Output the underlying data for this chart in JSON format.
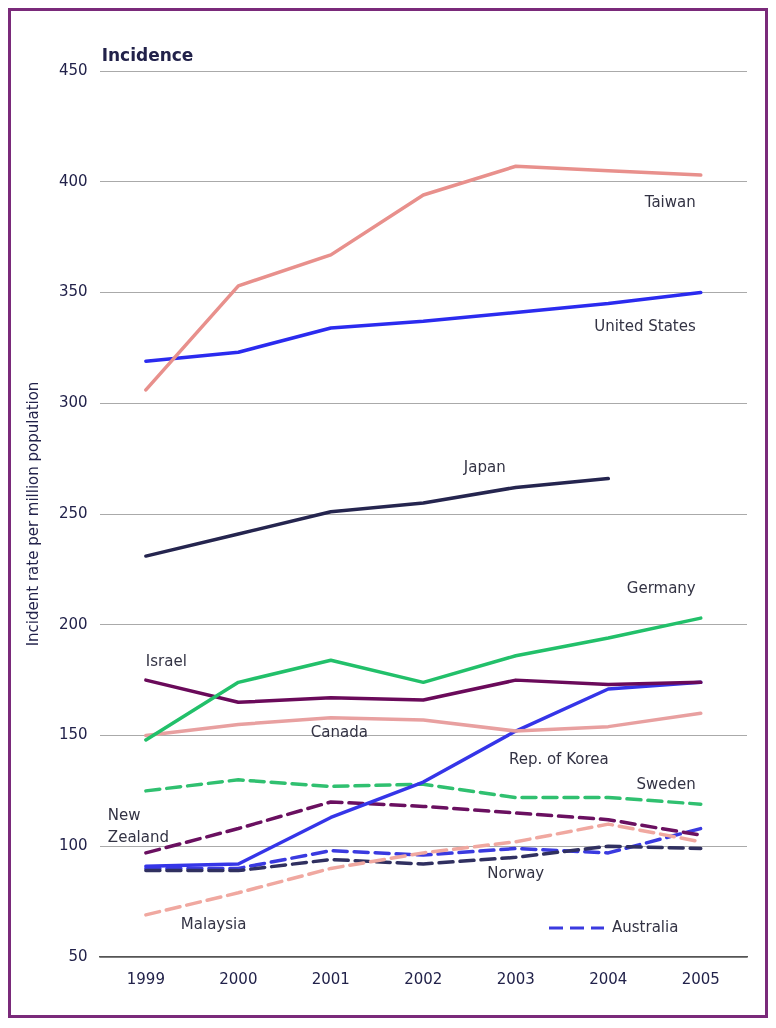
{
  "chart_data": {
    "type": "line",
    "title": "Incidence",
    "ylabel": "Incident rate per million population",
    "categories": [
      "1999",
      "2000",
      "2001",
      "2002",
      "2003",
      "2004",
      "2005"
    ],
    "ylim": [
      50,
      450
    ],
    "yticks": [
      50,
      100,
      150,
      200,
      250,
      300,
      350,
      400,
      450
    ],
    "grid": "y",
    "legend": "bottom right",
    "marker": "none",
    "series": [
      {
        "name": "Taiwan",
        "color": "#e8908c",
        "line_style": "solid",
        "values": [
          306,
          353,
          367,
          394,
          407,
          405,
          403
        ]
      },
      {
        "name": "United States",
        "color": "#2b2bef",
        "line_style": "solid",
        "values": [
          319,
          323,
          334,
          337,
          341,
          345,
          350
        ]
      },
      {
        "name": "Japan",
        "color": "#25254f",
        "line_style": "solid",
        "values": [
          231,
          241,
          251,
          255,
          262,
          266,
          null
        ]
      },
      {
        "name": "Germany",
        "color": "#22c06a",
        "line_style": "solid",
        "values": [
          148,
          174,
          184,
          174,
          186,
          194,
          203
        ]
      },
      {
        "name": "Israel",
        "color": "#6a0a5a",
        "line_style": "solid",
        "values": [
          175,
          165,
          167,
          166,
          175,
          173,
          174
        ]
      },
      {
        "name": "Canada",
        "color": "#e8a0a0",
        "line_style": "solid",
        "values": [
          150,
          155,
          158,
          157,
          152,
          154,
          160
        ]
      },
      {
        "name": "Rep. of Korea",
        "color": "#3535e8",
        "line_style": "solid",
        "values": [
          91,
          92,
          113,
          129,
          152,
          171,
          174
        ]
      },
      {
        "name": "Sweden",
        "color": "#30c070",
        "line_style": "dashed",
        "values": [
          125,
          130,
          127,
          128,
          122,
          122,
          119
        ]
      },
      {
        "name": "New Zealand",
        "color": "#6a1060",
        "line_style": "dashed",
        "values": [
          97,
          108,
          120,
          118,
          115,
          112,
          105
        ]
      },
      {
        "name": "Malaysia",
        "color": "#f0a8a0",
        "line_style": "dashed",
        "values": [
          69,
          79,
          90,
          97,
          102,
          110,
          102
        ]
      },
      {
        "name": "Norway",
        "color": "#303060",
        "line_style": "dashed",
        "values": [
          89,
          89,
          94,
          92,
          95,
          100,
          99
        ]
      },
      {
        "name": "Australia",
        "color": "#3a3ae0",
        "line_style": "dashed",
        "values": [
          90,
          90,
          98,
          96,
          99,
          97,
          108
        ]
      }
    ]
  }
}
